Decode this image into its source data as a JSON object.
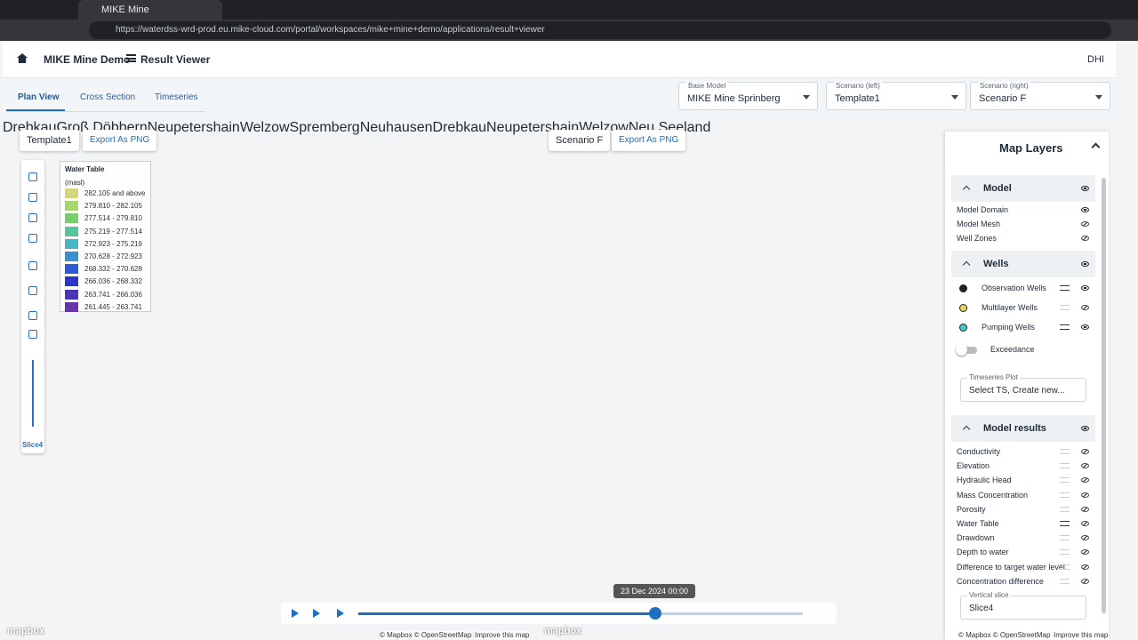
{
  "browser": {
    "tab_title": "MIKE Mine",
    "url": "https://waterdss-wrd-prod.eu.mike-cloud.com/portal/workspaces/mike+mine+demo/applications/result+viewer"
  },
  "header": {
    "app": "MIKE Mine Demo",
    "page": "Result Viewer",
    "org": "DHI"
  },
  "tabs": [
    "Plan View",
    "Cross Section",
    "Timeseries"
  ],
  "selectors": [
    {
      "label": "Base Model",
      "value": "MIKE Mine Sprinberg"
    },
    {
      "label": "Scenario (left)",
      "value": "Template1"
    },
    {
      "label": "Scenario (right)",
      "value": "Scenario F"
    }
  ],
  "left_map": {
    "scenario": "Template1",
    "export": "Export As PNG",
    "slice": "Slice4",
    "legend": {
      "title": "Water Table",
      "unit": "(masl)",
      "items": [
        {
          "label": "282.105 and above",
          "color": "#d3d57c"
        },
        {
          "label": "279.810 - 282.105",
          "color": "#a8d86b"
        },
        {
          "label": "277.514 - 279.810",
          "color": "#7acd6c"
        },
        {
          "label": "275.219 - 277.514",
          "color": "#55c59c"
        },
        {
          "label": "272.923 - 275.219",
          "color": "#46b6c2"
        },
        {
          "label": "270.628 - 272.923",
          "color": "#3a8fd2"
        },
        {
          "label": "268.332 - 270.628",
          "color": "#2d58d8"
        },
        {
          "label": "266.036 - 268.332",
          "color": "#2c35c6"
        },
        {
          "label": "263.741 - 266.036",
          "color": "#4836b6"
        },
        {
          "label": "261.445 - 263.741",
          "color": "#6a35a6"
        }
      ]
    }
  },
  "right_map": {
    "scenario": "Scenario F",
    "export": "Export As PNG"
  },
  "place_labels": [
    "Drebkau",
    "Groß Döbbern",
    "Neupetershain",
    "Welzow",
    "Spremberg",
    "Neuhausen",
    "Drebkau",
    "Neupetershain",
    "Welzow",
    "Neu Seeland"
  ],
  "timeline": {
    "date": "23 Dec 2024 00:00"
  },
  "attribution": {
    "text": "© Mapbox © OpenStreetMap",
    "link": "Improve this map",
    "logo": "mapbox"
  },
  "layers_panel": {
    "title": "Map Layers",
    "groups": [
      {
        "title": "Model",
        "items": [
          "Model Domain",
          "Model Mesh",
          "Well Zones"
        ]
      },
      {
        "title": "Wells",
        "items": [
          "Observation Wells",
          "Multilayer Wells",
          "Pumping Wells"
        ],
        "toggle": "Exceedance",
        "ts_label": "Timeseries Plot",
        "ts_value": "Select TS, Create new..."
      },
      {
        "title": "Model results",
        "items": [
          "Conductivity",
          "Elevation",
          "Hydraulic Head",
          "Mass Concentration",
          "Porosity",
          "Water Table",
          "Drawdown",
          "Depth to water",
          "Difference to target water level",
          "Concentration difference"
        ]
      }
    ],
    "slice_label": "Vertical slice",
    "slice_value": "Slice4"
  }
}
